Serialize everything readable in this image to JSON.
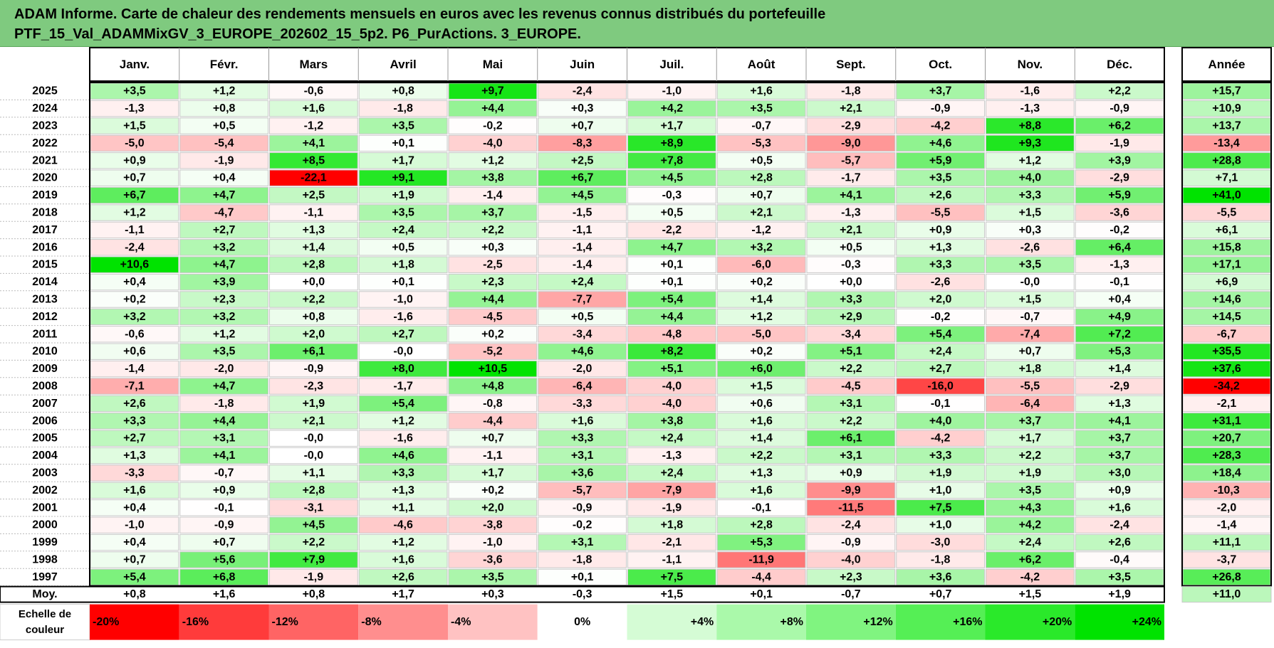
{
  "header": {
    "title_line1": "ADAM Informe. Carte de chaleur des rendements mensuels en euros avec les revenus connus distribués du portefeuille",
    "title_line2": "PTF_15_Val_ADAMMixGV_3_EUROPE_202602_15_5p2. P6_PurActions. 3_EUROPE."
  },
  "chart_data": {
    "type": "heatmap",
    "columns": [
      "Janv.",
      "Févr.",
      "Mars",
      "Avril",
      "Mai",
      "Juin",
      "Juil.",
      "Août",
      "Sept.",
      "Oct.",
      "Nov.",
      "Déc."
    ],
    "year_column_label": "Année",
    "rows": [
      {
        "year": "2025",
        "values": [
          "+3,5",
          "+1,2",
          "-0,6",
          "+0,8",
          "+9,7",
          "-2,4",
          "-1,0",
          "+1,6",
          "-1,8",
          "+3,7",
          "-1,6",
          "+2,2"
        ],
        "annual": "+15,7"
      },
      {
        "year": "2024",
        "values": [
          "-1,3",
          "+0,8",
          "+1,6",
          "-1,8",
          "+4,4",
          "+0,3",
          "+4,2",
          "+3,5",
          "+2,1",
          "-0,9",
          "-1,3",
          "-0,9"
        ],
        "annual": "+10,9"
      },
      {
        "year": "2023",
        "values": [
          "+1,5",
          "+0,5",
          "-1,2",
          "+3,5",
          "-0,2",
          "+0,7",
          "+1,7",
          "-0,7",
          "-2,9",
          "-4,2",
          "+8,8",
          "+6,2"
        ],
        "annual": "+13,7"
      },
      {
        "year": "2022",
        "values": [
          "-5,0",
          "-5,4",
          "+4,1",
          "+0,1",
          "-4,0",
          "-8,3",
          "+8,9",
          "-5,3",
          "-9,0",
          "+4,6",
          "+9,3",
          "-1,9"
        ],
        "annual": "-13,4"
      },
      {
        "year": "2021",
        "values": [
          "+0,9",
          "-1,9",
          "+8,5",
          "+1,7",
          "+1,2",
          "+2,5",
          "+7,8",
          "+0,5",
          "-5,7",
          "+5,9",
          "+1,2",
          "+3,9"
        ],
        "annual": "+28,8"
      },
      {
        "year": "2020",
        "values": [
          "+0,7",
          "+0,4",
          "-22,1",
          "+9,1",
          "+3,8",
          "+6,7",
          "+4,5",
          "+2,8",
          "-1,7",
          "+3,5",
          "+4,0",
          "-2,9"
        ],
        "annual": "+7,1"
      },
      {
        "year": "2019",
        "values": [
          "+6,7",
          "+4,7",
          "+2,5",
          "+1,9",
          "-1,4",
          "+4,5",
          "-0,3",
          "+0,7",
          "+4,1",
          "+2,6",
          "+3,3",
          "+5,9"
        ],
        "annual": "+41,0"
      },
      {
        "year": "2018",
        "values": [
          "+1,2",
          "-4,7",
          "-1,1",
          "+3,5",
          "+3,7",
          "-1,5",
          "+0,5",
          "+2,1",
          "-1,3",
          "-5,5",
          "+1,5",
          "-3,6"
        ],
        "annual": "-5,5"
      },
      {
        "year": "2017",
        "values": [
          "-1,1",
          "+2,7",
          "+1,3",
          "+2,4",
          "+2,2",
          "-1,1",
          "-2,2",
          "-1,2",
          "+2,1",
          "+0,9",
          "+0,3",
          "-0,2"
        ],
        "annual": "+6,1"
      },
      {
        "year": "2016",
        "values": [
          "-2,4",
          "+3,2",
          "+1,4",
          "+0,5",
          "+0,3",
          "-1,4",
          "+4,7",
          "+3,2",
          "+0,5",
          "+1,3",
          "-2,6",
          "+6,4"
        ],
        "annual": "+15,8"
      },
      {
        "year": "2015",
        "values": [
          "+10,6",
          "+4,7",
          "+2,8",
          "+1,8",
          "-2,5",
          "-1,4",
          "+0,1",
          "-6,0",
          "-0,3",
          "+3,3",
          "+3,5",
          "-1,3"
        ],
        "annual": "+17,1"
      },
      {
        "year": "2014",
        "values": [
          "+0,4",
          "+3,9",
          "+0,0",
          "+0,1",
          "+2,3",
          "+2,4",
          "+0,1",
          "+0,2",
          "+0,0",
          "-2,6",
          "-0,0",
          "-0,1"
        ],
        "annual": "+6,9"
      },
      {
        "year": "2013",
        "values": [
          "+0,2",
          "+2,3",
          "+2,2",
          "-1,0",
          "+4,4",
          "-7,7",
          "+5,4",
          "+1,4",
          "+3,3",
          "+2,0",
          "+1,5",
          "+0,4"
        ],
        "annual": "+14,6"
      },
      {
        "year": "2012",
        "values": [
          "+3,2",
          "+3,2",
          "+0,8",
          "-1,6",
          "-4,5",
          "+0,5",
          "+4,4",
          "+1,2",
          "+2,9",
          "-0,2",
          "-0,7",
          "+4,9"
        ],
        "annual": "+14,5"
      },
      {
        "year": "2011",
        "values": [
          "-0,6",
          "+1,2",
          "+2,0",
          "+2,7",
          "+0,2",
          "-3,4",
          "-4,8",
          "-5,0",
          "-3,4",
          "+5,4",
          "-7,4",
          "+7,2"
        ],
        "annual": "-6,7"
      },
      {
        "year": "2010",
        "values": [
          "+0,6",
          "+3,5",
          "+6,1",
          "-0,0",
          "-5,2",
          "+4,6",
          "+8,2",
          "+0,2",
          "+5,1",
          "+2,4",
          "+0,7",
          "+5,3"
        ],
        "annual": "+35,5"
      },
      {
        "year": "2009",
        "values": [
          "-1,4",
          "-2,0",
          "-0,9",
          "+8,0",
          "+10,5",
          "-2,0",
          "+5,1",
          "+6,0",
          "+2,2",
          "+2,7",
          "+1,8",
          "+1,4"
        ],
        "annual": "+37,6"
      },
      {
        "year": "2008",
        "values": [
          "-7,1",
          "+4,7",
          "-2,3",
          "-1,7",
          "+4,8",
          "-6,4",
          "-4,0",
          "+1,5",
          "-4,5",
          "-16,0",
          "-5,5",
          "-2,9"
        ],
        "annual": "-34,2"
      },
      {
        "year": "2007",
        "values": [
          "+2,6",
          "-1,8",
          "+1,9",
          "+5,4",
          "-0,8",
          "-3,3",
          "-4,0",
          "+0,6",
          "+3,1",
          "-0,1",
          "-6,4",
          "+1,3"
        ],
        "annual": "-2,1"
      },
      {
        "year": "2006",
        "values": [
          "+3,3",
          "+4,4",
          "+2,1",
          "+1,2",
          "-4,4",
          "+1,6",
          "+3,8",
          "+1,6",
          "+2,2",
          "+4,0",
          "+3,7",
          "+4,1"
        ],
        "annual": "+31,1"
      },
      {
        "year": "2005",
        "values": [
          "+2,7",
          "+3,1",
          "-0,0",
          "-1,6",
          "+0,7",
          "+3,3",
          "+2,4",
          "+1,4",
          "+6,1",
          "-4,2",
          "+1,7",
          "+3,7"
        ],
        "annual": "+20,7"
      },
      {
        "year": "2004",
        "values": [
          "+1,3",
          "+4,1",
          "-0,0",
          "+4,6",
          "-1,1",
          "+3,1",
          "-1,3",
          "+2,2",
          "+3,1",
          "+3,3",
          "+2,2",
          "+3,7"
        ],
        "annual": "+28,3"
      },
      {
        "year": "2003",
        "values": [
          "-3,3",
          "-0,7",
          "+1,1",
          "+3,3",
          "+1,7",
          "+3,6",
          "+2,4",
          "+1,3",
          "+0,9",
          "+1,9",
          "+1,9",
          "+3,0"
        ],
        "annual": "+18,4"
      },
      {
        "year": "2002",
        "values": [
          "+1,6",
          "+0,9",
          "+2,8",
          "+1,3",
          "+0,2",
          "-5,7",
          "-7,9",
          "+1,6",
          "-9,9",
          "+1,0",
          "+3,5",
          "+0,9"
        ],
        "annual": "-10,3"
      },
      {
        "year": "2001",
        "values": [
          "+0,4",
          "-0,1",
          "-3,1",
          "+1,1",
          "+2,0",
          "-0,9",
          "-1,9",
          "-0,1",
          "-11,5",
          "+7,5",
          "+4,3",
          "+1,6"
        ],
        "annual": "-2,0"
      },
      {
        "year": "2000",
        "values": [
          "-1,0",
          "-0,9",
          "+4,5",
          "-4,6",
          "-3,8",
          "-0,2",
          "+1,8",
          "+2,8",
          "-2,4",
          "+1,0",
          "+4,2",
          "-2,4"
        ],
        "annual": "-1,4"
      },
      {
        "year": "1999",
        "values": [
          "+0,4",
          "+0,7",
          "+2,2",
          "+1,2",
          "-1,0",
          "+3,1",
          "-2,1",
          "+5,3",
          "-0,9",
          "-3,0",
          "+2,4",
          "+2,6"
        ],
        "annual": "+11,1"
      },
      {
        "year": "1998",
        "values": [
          "+0,7",
          "+5,6",
          "+7,9",
          "+1,6",
          "-3,6",
          "-1,8",
          "-1,1",
          "-11,9",
          "-4,0",
          "-1,8",
          "+6,2",
          "-0,4"
        ],
        "annual": "-3,7"
      },
      {
        "year": "1997",
        "values": [
          "+5,4",
          "+6,8",
          "-1,9",
          "+2,6",
          "+3,5",
          "+0,1",
          "+7,5",
          "-4,4",
          "+2,3",
          "+3,6",
          "-4,2",
          "+3,5"
        ],
        "annual": "+26,8"
      }
    ],
    "average_row": {
      "label": "Moy.",
      "values": [
        "+0,8",
        "+1,6",
        "+0,8",
        "+1,7",
        "+0,3",
        "-0,3",
        "+1,5",
        "+0,1",
        "-0,7",
        "+0,7",
        "+1,5",
        "+1,9"
      ],
      "annual": "+11,0"
    },
    "color_scale": {
      "label_line1": "Echelle de",
      "label_line2": "couleur",
      "stops": [
        {
          "label": "-20%",
          "color": "#ff0000"
        },
        {
          "label": "-16%",
          "color": "#ff3b3b"
        },
        {
          "label": "-12%",
          "color": "#ff6464"
        },
        {
          "label": "-8%",
          "color": "#ff8e8e"
        },
        {
          "label": "-4%",
          "color": "#ffc2c2"
        },
        {
          "label": "0%",
          "color": "#ffffff"
        },
        {
          "label": "+4%",
          "color": "#d5fcd5"
        },
        {
          "label": "+8%",
          "color": "#aaf9aa"
        },
        {
          "label": "+12%",
          "color": "#80f480"
        },
        {
          "label": "+16%",
          "color": "#55ef55"
        },
        {
          "label": "+20%",
          "color": "#2ae92a"
        },
        {
          "label": "+24%",
          "color": "#00e300"
        }
      ]
    },
    "colors": {
      "header_bg": "#7fca7f",
      "negative_max": "#ff0000",
      "positive_max": "#00e300",
      "neutral": "#ffffff"
    },
    "monthly_scale_max": {
      "positive": 10.6,
      "negative": 22.1
    },
    "annual_scale_max": {
      "positive": 41.0,
      "negative": 34.2
    }
  }
}
